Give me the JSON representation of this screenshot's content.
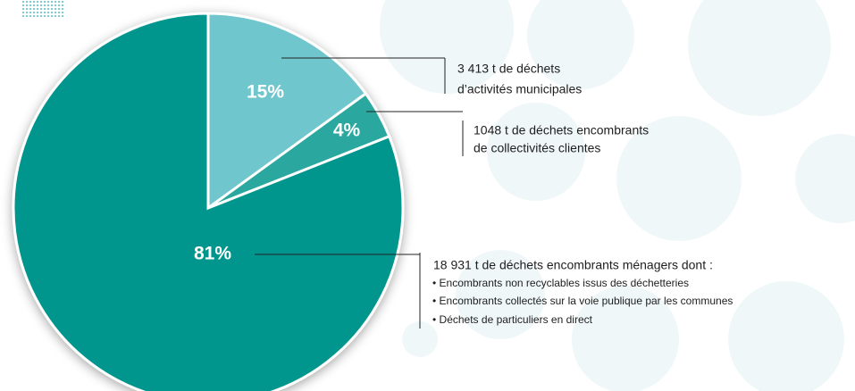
{
  "chart_data": {
    "type": "pie",
    "values": [
      15,
      4,
      81
    ],
    "value_labels": [
      "15%",
      "4%",
      "81%"
    ],
    "colors": [
      "#6fc6cd",
      "#2aa89f",
      "#00968e"
    ],
    "annotations": [
      {
        "lines": [
          "3 413 t de déchets",
          "d’activités municipales"
        ]
      },
      {
        "lines": [
          "1048 t de déchets encombrants",
          "de collectivités clientes"
        ]
      },
      {
        "lines": [
          "18 931 t de déchets encombrants ménagers dont :",
          "• Encombrants non recyclables issus des déchetteries",
          "• Encombrants collectés sur la voie publique par les communes",
          "• Déchets de particuliers en direct"
        ]
      }
    ]
  }
}
